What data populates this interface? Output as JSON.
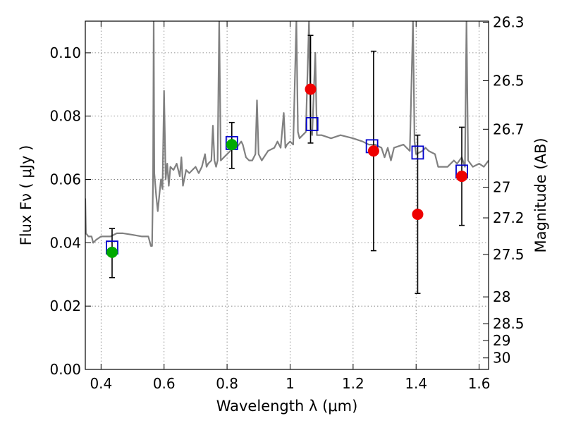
{
  "chart_data": {
    "type": "scatter",
    "xlabel": "Wavelength  λ (μm)",
    "ylabel": "Flux  Fν  ( μJy )",
    "y2label": "Magnitude (AB)",
    "xlim": [
      0.35,
      1.63
    ],
    "ylim": [
      0.0,
      0.11
    ],
    "grid": true,
    "x_ticks": [
      0.4,
      0.6,
      0.8,
      1.0,
      1.2,
      1.4,
      1.6
    ],
    "x_tick_labels": [
      "0.4",
      "0.6",
      "0.8",
      "1",
      "1.2",
      "1.4",
      "1.6"
    ],
    "y_ticks": [
      0.0,
      0.02,
      0.04,
      0.06,
      0.08,
      0.1
    ],
    "y_tick_labels": [
      "0.00",
      "0.02",
      "0.04",
      "0.06",
      "0.08",
      "0.10"
    ],
    "mag_ticks": [
      26.3,
      26.5,
      26.7,
      27,
      27.2,
      27.5,
      28,
      28.5,
      29,
      30
    ],
    "mag_tick_labels": [
      "26.3",
      "26.5",
      "26.7",
      "27",
      "27.2",
      "27.5",
      "28",
      "28.5",
      "29",
      "30"
    ],
    "colors": {
      "template": "#808080",
      "model_box": "#0000cc",
      "detection": "#00aa00",
      "upper": "#ee0000",
      "errorbar": "#000000"
    },
    "template_spectrum": {
      "name": "template",
      "points": [
        [
          0.35,
          0.054
        ],
        [
          0.352,
          0.043
        ],
        [
          0.36,
          0.042
        ],
        [
          0.37,
          0.042
        ],
        [
          0.375,
          0.04
        ],
        [
          0.385,
          0.041
        ],
        [
          0.4,
          0.042
        ],
        [
          0.43,
          0.042
        ],
        [
          0.45,
          0.043
        ],
        [
          0.47,
          0.043
        ],
        [
          0.5,
          0.0425
        ],
        [
          0.53,
          0.042
        ],
        [
          0.55,
          0.042
        ],
        [
          0.558,
          0.039
        ],
        [
          0.562,
          0.039
        ],
        [
          0.565,
          0.06
        ],
        [
          0.567,
          0.11
        ],
        [
          0.569,
          0.062
        ],
        [
          0.575,
          0.055
        ],
        [
          0.58,
          0.05
        ],
        [
          0.585,
          0.055
        ],
        [
          0.59,
          0.06
        ],
        [
          0.595,
          0.057
        ],
        [
          0.6,
          0.088
        ],
        [
          0.605,
          0.06
        ],
        [
          0.61,
          0.065
        ],
        [
          0.615,
          0.058
        ],
        [
          0.62,
          0.064
        ],
        [
          0.63,
          0.063
        ],
        [
          0.64,
          0.065
        ],
        [
          0.65,
          0.061
        ],
        [
          0.655,
          0.067
        ],
        [
          0.66,
          0.058
        ],
        [
          0.67,
          0.063
        ],
        [
          0.68,
          0.062
        ],
        [
          0.69,
          0.063
        ],
        [
          0.7,
          0.064
        ],
        [
          0.71,
          0.062
        ],
        [
          0.72,
          0.064
        ],
        [
          0.73,
          0.068
        ],
        [
          0.735,
          0.064
        ],
        [
          0.74,
          0.065
        ],
        [
          0.75,
          0.066
        ],
        [
          0.755,
          0.077
        ],
        [
          0.76,
          0.066
        ],
        [
          0.765,
          0.064
        ],
        [
          0.77,
          0.066
        ],
        [
          0.775,
          0.11
        ],
        [
          0.78,
          0.066
        ],
        [
          0.79,
          0.067
        ],
        [
          0.8,
          0.068
        ],
        [
          0.81,
          0.069
        ],
        [
          0.82,
          0.07
        ],
        [
          0.83,
          0.07
        ],
        [
          0.845,
          0.072
        ],
        [
          0.85,
          0.071
        ],
        [
          0.86,
          0.067
        ],
        [
          0.87,
          0.066
        ],
        [
          0.88,
          0.066
        ],
        [
          0.89,
          0.068
        ],
        [
          0.895,
          0.085
        ],
        [
          0.9,
          0.068
        ],
        [
          0.91,
          0.066
        ],
        [
          0.93,
          0.069
        ],
        [
          0.95,
          0.07
        ],
        [
          0.96,
          0.072
        ],
        [
          0.97,
          0.07
        ],
        [
          0.98,
          0.081
        ],
        [
          0.985,
          0.07
        ],
        [
          0.99,
          0.071
        ],
        [
          1.0,
          0.072
        ],
        [
          1.01,
          0.071
        ],
        [
          1.02,
          0.11
        ],
        [
          1.025,
          0.075
        ],
        [
          1.03,
          0.073
        ],
        [
          1.04,
          0.074
        ],
        [
          1.05,
          0.075
        ],
        [
          1.06,
          0.11
        ],
        [
          1.065,
          0.076
        ],
        [
          1.07,
          0.074
        ],
        [
          1.08,
          0.1
        ],
        [
          1.085,
          0.074
        ],
        [
          1.1,
          0.074
        ],
        [
          1.13,
          0.073
        ],
        [
          1.16,
          0.074
        ],
        [
          1.2,
          0.073
        ],
        [
          1.23,
          0.072
        ],
        [
          1.25,
          0.071
        ],
        [
          1.27,
          0.071
        ],
        [
          1.29,
          0.07
        ],
        [
          1.3,
          0.067
        ],
        [
          1.31,
          0.07
        ],
        [
          1.32,
          0.066
        ],
        [
          1.33,
          0.07
        ],
        [
          1.36,
          0.071
        ],
        [
          1.38,
          0.069
        ],
        [
          1.39,
          0.11
        ],
        [
          1.395,
          0.072
        ],
        [
          1.4,
          0.068
        ],
        [
          1.42,
          0.069
        ],
        [
          1.43,
          0.07
        ],
        [
          1.44,
          0.069
        ],
        [
          1.46,
          0.068
        ],
        [
          1.47,
          0.064
        ],
        [
          1.48,
          0.064
        ],
        [
          1.5,
          0.064
        ],
        [
          1.52,
          0.066
        ],
        [
          1.53,
          0.065
        ],
        [
          1.545,
          0.067
        ],
        [
          1.555,
          0.064
        ],
        [
          1.56,
          0.11
        ],
        [
          1.565,
          0.066
        ],
        [
          1.58,
          0.064
        ],
        [
          1.6,
          0.065
        ],
        [
          1.615,
          0.064
        ],
        [
          1.63,
          0.066
        ]
      ]
    },
    "model_photometry": {
      "name": "model",
      "x": [
        0.435,
        0.815,
        1.07,
        1.26,
        1.405,
        1.545
      ],
      "y": [
        0.0385,
        0.0715,
        0.0775,
        0.0705,
        0.0685,
        0.0625
      ]
    },
    "observed_photometry": [
      {
        "x": 0.435,
        "y": 0.037,
        "err_low": 0.029,
        "err_high": 0.0445,
        "kind": "detection"
      },
      {
        "x": 0.815,
        "y": 0.071,
        "err_low": 0.0635,
        "err_high": 0.078,
        "kind": "detection"
      },
      {
        "x": 1.065,
        "y": 0.0885,
        "err_low": 0.0715,
        "err_high": 0.1055,
        "kind": "upper"
      },
      {
        "x": 1.265,
        "y": 0.069,
        "err_low": 0.0375,
        "err_high": 0.1005,
        "kind": "upper"
      },
      {
        "x": 1.405,
        "y": 0.049,
        "err_low": 0.024,
        "err_high": 0.074,
        "kind": "upper"
      },
      {
        "x": 1.545,
        "y": 0.061,
        "err_low": 0.0455,
        "err_high": 0.0765,
        "kind": "upper"
      }
    ]
  }
}
